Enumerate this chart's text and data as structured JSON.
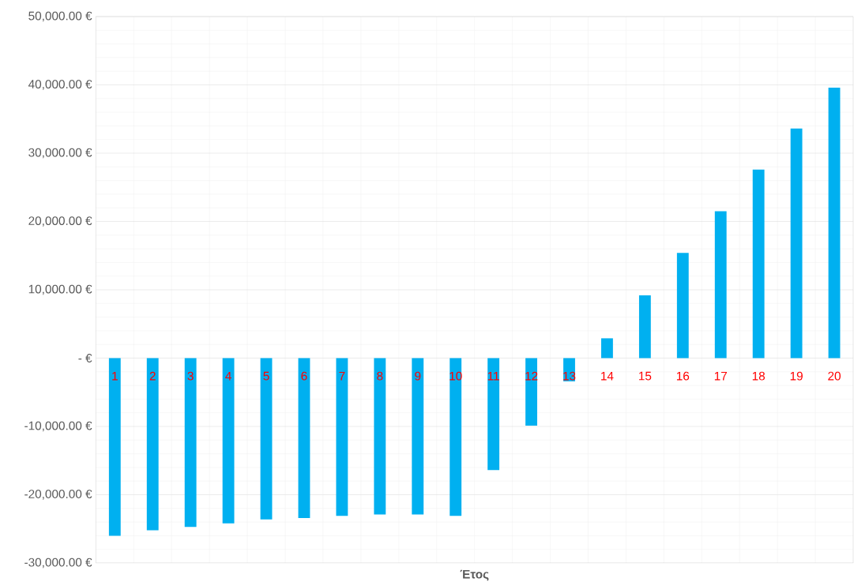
{
  "chart_data": {
    "type": "bar",
    "xlabel": "Έτος",
    "categories": [
      "1",
      "2",
      "3",
      "4",
      "5",
      "6",
      "7",
      "8",
      "9",
      "10",
      "11",
      "12",
      "13",
      "14",
      "15",
      "16",
      "17",
      "18",
      "19",
      "20"
    ],
    "values": [
      -26000,
      -25200,
      -24700,
      -24200,
      -23600,
      -23400,
      -23100,
      -22900,
      -22900,
      -23100,
      -16400,
      -9900,
      -3400,
      2900,
      9200,
      15400,
      21500,
      27600,
      33600,
      39600
    ],
    "color": "#00b0f0",
    "ylim": [
      -30000,
      50000
    ],
    "yticks": [
      {
        "value": -30000,
        "label": "-30,000.00 €"
      },
      {
        "value": -20000,
        "label": "-20,000.00 €"
      },
      {
        "value": -10000,
        "label": "-10,000.00 €"
      },
      {
        "value": 0,
        "label": "-   €"
      },
      {
        "value": 10000,
        "label": "10,000.00 €"
      },
      {
        "value": 20000,
        "label": "20,000.00 €"
      },
      {
        "value": 30000,
        "label": "30,000.00 €"
      },
      {
        "value": 40000,
        "label": "40,000.00 €"
      },
      {
        "value": 50000,
        "label": "50,000.00 €"
      }
    ],
    "grid": true
  }
}
